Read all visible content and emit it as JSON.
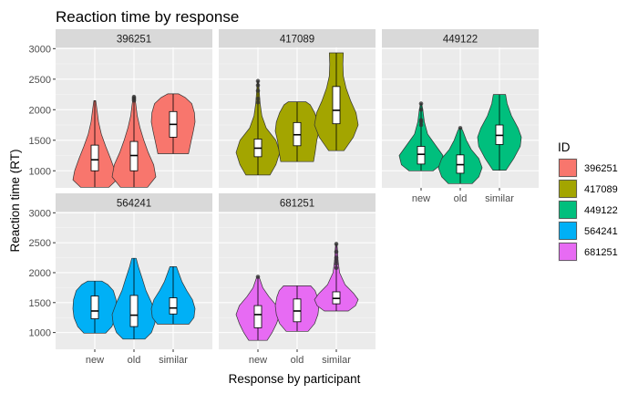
{
  "chart_data": {
    "type": "violin",
    "title": "Reaction time by response",
    "xlabel": "Response by participant",
    "ylabel": "Reaction time (RT)",
    "categories": [
      "new",
      "old",
      "similar"
    ],
    "yticks": [
      1000,
      1500,
      2000,
      2500,
      3000
    ],
    "ylim": [
      720,
      3020
    ],
    "grid": true,
    "legend": {
      "title": "ID",
      "position": "right",
      "items": [
        {
          "label": "396251",
          "color": "#F8766D"
        },
        {
          "label": "417089",
          "color": "#A3A500"
        },
        {
          "label": "449122",
          "color": "#00BF7D"
        },
        {
          "label": "564241",
          "color": "#00B0F6"
        },
        {
          "label": "681251",
          "color": "#E76BF3"
        }
      ]
    },
    "panels": [
      {
        "id": "396251",
        "color": "#F8766D",
        "groups": [
          {
            "category": "new",
            "min": 730,
            "q1": 1000,
            "median": 1180,
            "q3": 1420,
            "max": 2150,
            "profile": [
              [
                730,
                0.65
              ],
              [
                850,
                1.0
              ],
              [
                1000,
                0.92
              ],
              [
                1200,
                0.72
              ],
              [
                1400,
                0.5
              ],
              [
                1600,
                0.3
              ],
              [
                1800,
                0.17
              ],
              [
                2000,
                0.1
              ],
              [
                2150,
                0.04
              ]
            ],
            "outliers": []
          },
          {
            "category": "old",
            "min": 730,
            "q1": 1000,
            "median": 1250,
            "q3": 1480,
            "max": 2210,
            "profile": [
              [
                730,
                0.62
              ],
              [
                900,
                1.0
              ],
              [
                1100,
                0.9
              ],
              [
                1300,
                0.65
              ],
              [
                1500,
                0.45
              ],
              [
                1700,
                0.28
              ],
              [
                1900,
                0.15
              ],
              [
                2100,
                0.08
              ],
              [
                2210,
                0.03
              ]
            ],
            "outliers": [
              2150,
              2170,
              2190,
              2210
            ]
          },
          {
            "category": "similar",
            "min": 1280,
            "q1": 1550,
            "median": 1760,
            "q3": 1970,
            "max": 2260,
            "profile": [
              [
                1280,
                0.7
              ],
              [
                1450,
                0.8
              ],
              [
                1650,
                0.92
              ],
              [
                1800,
                1.0
              ],
              [
                1950,
                0.97
              ],
              [
                2100,
                0.85
              ],
              [
                2200,
                0.55
              ],
              [
                2260,
                0.25
              ]
            ],
            "outliers": []
          }
        ]
      },
      {
        "id": "417089",
        "color": "#A3A500",
        "groups": [
          {
            "category": "new",
            "min": 930,
            "q1": 1230,
            "median": 1370,
            "q3": 1520,
            "max": 2470,
            "profile": [
              [
                930,
                0.55
              ],
              [
                1100,
                0.82
              ],
              [
                1300,
                1.0
              ],
              [
                1500,
                0.82
              ],
              [
                1700,
                0.38
              ],
              [
                1900,
                0.18
              ],
              [
                2100,
                0.1
              ],
              [
                2300,
                0.06
              ],
              [
                2470,
                0.03
              ]
            ],
            "outliers": [
              2120,
              2180,
              2310,
              2400,
              2470
            ]
          },
          {
            "category": "old",
            "min": 1150,
            "q1": 1410,
            "median": 1590,
            "q3": 1790,
            "max": 2130,
            "profile": [
              [
                1150,
                0.75
              ],
              [
                1300,
                0.82
              ],
              [
                1500,
                0.9
              ],
              [
                1650,
                1.0
              ],
              [
                1800,
                0.95
              ],
              [
                1950,
                0.8
              ],
              [
                2080,
                0.6
              ],
              [
                2130,
                0.4
              ]
            ],
            "outliers": []
          },
          {
            "category": "similar",
            "min": 1330,
            "q1": 1770,
            "median": 1990,
            "q3": 2380,
            "max": 2930,
            "profile": [
              [
                1330,
                0.35
              ],
              [
                1550,
                0.78
              ],
              [
                1750,
                1.0
              ],
              [
                1950,
                0.9
              ],
              [
                2150,
                0.65
              ],
              [
                2350,
                0.45
              ],
              [
                2550,
                0.32
              ],
              [
                2750,
                0.3
              ],
              [
                2930,
                0.32
              ]
            ],
            "outliers": []
          }
        ]
      },
      {
        "id": "449122",
        "color": "#00BF7D",
        "groups": [
          {
            "category": "new",
            "min": 1000,
            "q1": 1110,
            "median": 1270,
            "q3": 1400,
            "max": 2100,
            "profile": [
              [
                1000,
                0.55
              ],
              [
                1100,
                0.9
              ],
              [
                1250,
                1.0
              ],
              [
                1400,
                0.7
              ],
              [
                1600,
                0.3
              ],
              [
                1800,
                0.15
              ],
              [
                2000,
                0.08
              ],
              [
                2100,
                0.03
              ]
            ],
            "outliers": [
              1750,
              1800,
              1830,
              2000,
              2100
            ]
          },
          {
            "category": "old",
            "min": 790,
            "q1": 960,
            "median": 1100,
            "q3": 1260,
            "max": 1700,
            "profile": [
              [
                790,
                0.55
              ],
              [
                900,
                0.85
              ],
              [
                1050,
                1.0
              ],
              [
                1200,
                0.85
              ],
              [
                1350,
                0.5
              ],
              [
                1500,
                0.28
              ],
              [
                1650,
                0.12
              ],
              [
                1700,
                0.05
              ]
            ],
            "outliers": [
              1700
            ]
          },
          {
            "category": "similar",
            "min": 1010,
            "q1": 1430,
            "median": 1580,
            "q3": 1750,
            "max": 2250,
            "profile": [
              [
                1010,
                0.3
              ],
              [
                1200,
                0.65
              ],
              [
                1400,
                0.95
              ],
              [
                1550,
                1.0
              ],
              [
                1700,
                0.85
              ],
              [
                1900,
                0.55
              ],
              [
                2100,
                0.35
              ],
              [
                2250,
                0.28
              ]
            ],
            "outliers": []
          }
        ]
      },
      {
        "id": "564241",
        "color": "#00B0F6",
        "groups": [
          {
            "category": "new",
            "min": 990,
            "q1": 1230,
            "median": 1360,
            "q3": 1610,
            "max": 1860,
            "profile": [
              [
                990,
                0.5
              ],
              [
                1100,
                0.78
              ],
              [
                1250,
                0.95
              ],
              [
                1400,
                1.0
              ],
              [
                1550,
                0.97
              ],
              [
                1700,
                0.85
              ],
              [
                1800,
                0.6
              ],
              [
                1860,
                0.32
              ]
            ],
            "outliers": []
          },
          {
            "category": "old",
            "min": 890,
            "q1": 1100,
            "median": 1290,
            "q3": 1620,
            "max": 2240,
            "profile": [
              [
                890,
                0.5
              ],
              [
                1000,
                0.8
              ],
              [
                1150,
                0.95
              ],
              [
                1300,
                1.0
              ],
              [
                1500,
                0.8
              ],
              [
                1700,
                0.55
              ],
              [
                1900,
                0.38
              ],
              [
                2100,
                0.2
              ],
              [
                2240,
                0.1
              ]
            ],
            "outliers": []
          },
          {
            "category": "similar",
            "min": 1140,
            "q1": 1310,
            "median": 1410,
            "q3": 1580,
            "max": 2100,
            "profile": [
              [
                1140,
                0.72
              ],
              [
                1250,
                0.95
              ],
              [
                1400,
                1.0
              ],
              [
                1550,
                0.88
              ],
              [
                1700,
                0.62
              ],
              [
                1850,
                0.4
              ],
              [
                2000,
                0.25
              ],
              [
                2100,
                0.15
              ]
            ],
            "outliers": []
          }
        ]
      },
      {
        "id": "681251",
        "color": "#E76BF3",
        "groups": [
          {
            "category": "new",
            "min": 870,
            "q1": 1080,
            "median": 1300,
            "q3": 1450,
            "max": 1930,
            "profile": [
              [
                870,
                0.42
              ],
              [
                1000,
                0.65
              ],
              [
                1150,
                0.85
              ],
              [
                1300,
                1.0
              ],
              [
                1450,
                0.85
              ],
              [
                1600,
                0.5
              ],
              [
                1750,
                0.22
              ],
              [
                1900,
                0.08
              ],
              [
                1930,
                0.04
              ]
            ],
            "outliers": [
              1930
            ]
          },
          {
            "category": "old",
            "min": 1020,
            "q1": 1180,
            "median": 1360,
            "q3": 1560,
            "max": 1780,
            "profile": [
              [
                1020,
                0.5
              ],
              [
                1150,
                0.8
              ],
              [
                1300,
                0.95
              ],
              [
                1450,
                1.0
              ],
              [
                1600,
                0.92
              ],
              [
                1700,
                0.82
              ],
              [
                1780,
                0.62
              ]
            ],
            "outliers": []
          },
          {
            "category": "similar",
            "min": 1360,
            "q1": 1480,
            "median": 1570,
            "q3": 1680,
            "max": 2480,
            "profile": [
              [
                1360,
                0.55
              ],
              [
                1450,
                0.88
              ],
              [
                1550,
                1.0
              ],
              [
                1650,
                0.8
              ],
              [
                1800,
                0.4
              ],
              [
                2000,
                0.15
              ],
              [
                2200,
                0.08
              ],
              [
                2400,
                0.05
              ],
              [
                2480,
                0.03
              ]
            ],
            "outliers": [
              2080,
              2150,
              2200,
              2250,
              2350,
              2480
            ]
          }
        ]
      }
    ]
  }
}
